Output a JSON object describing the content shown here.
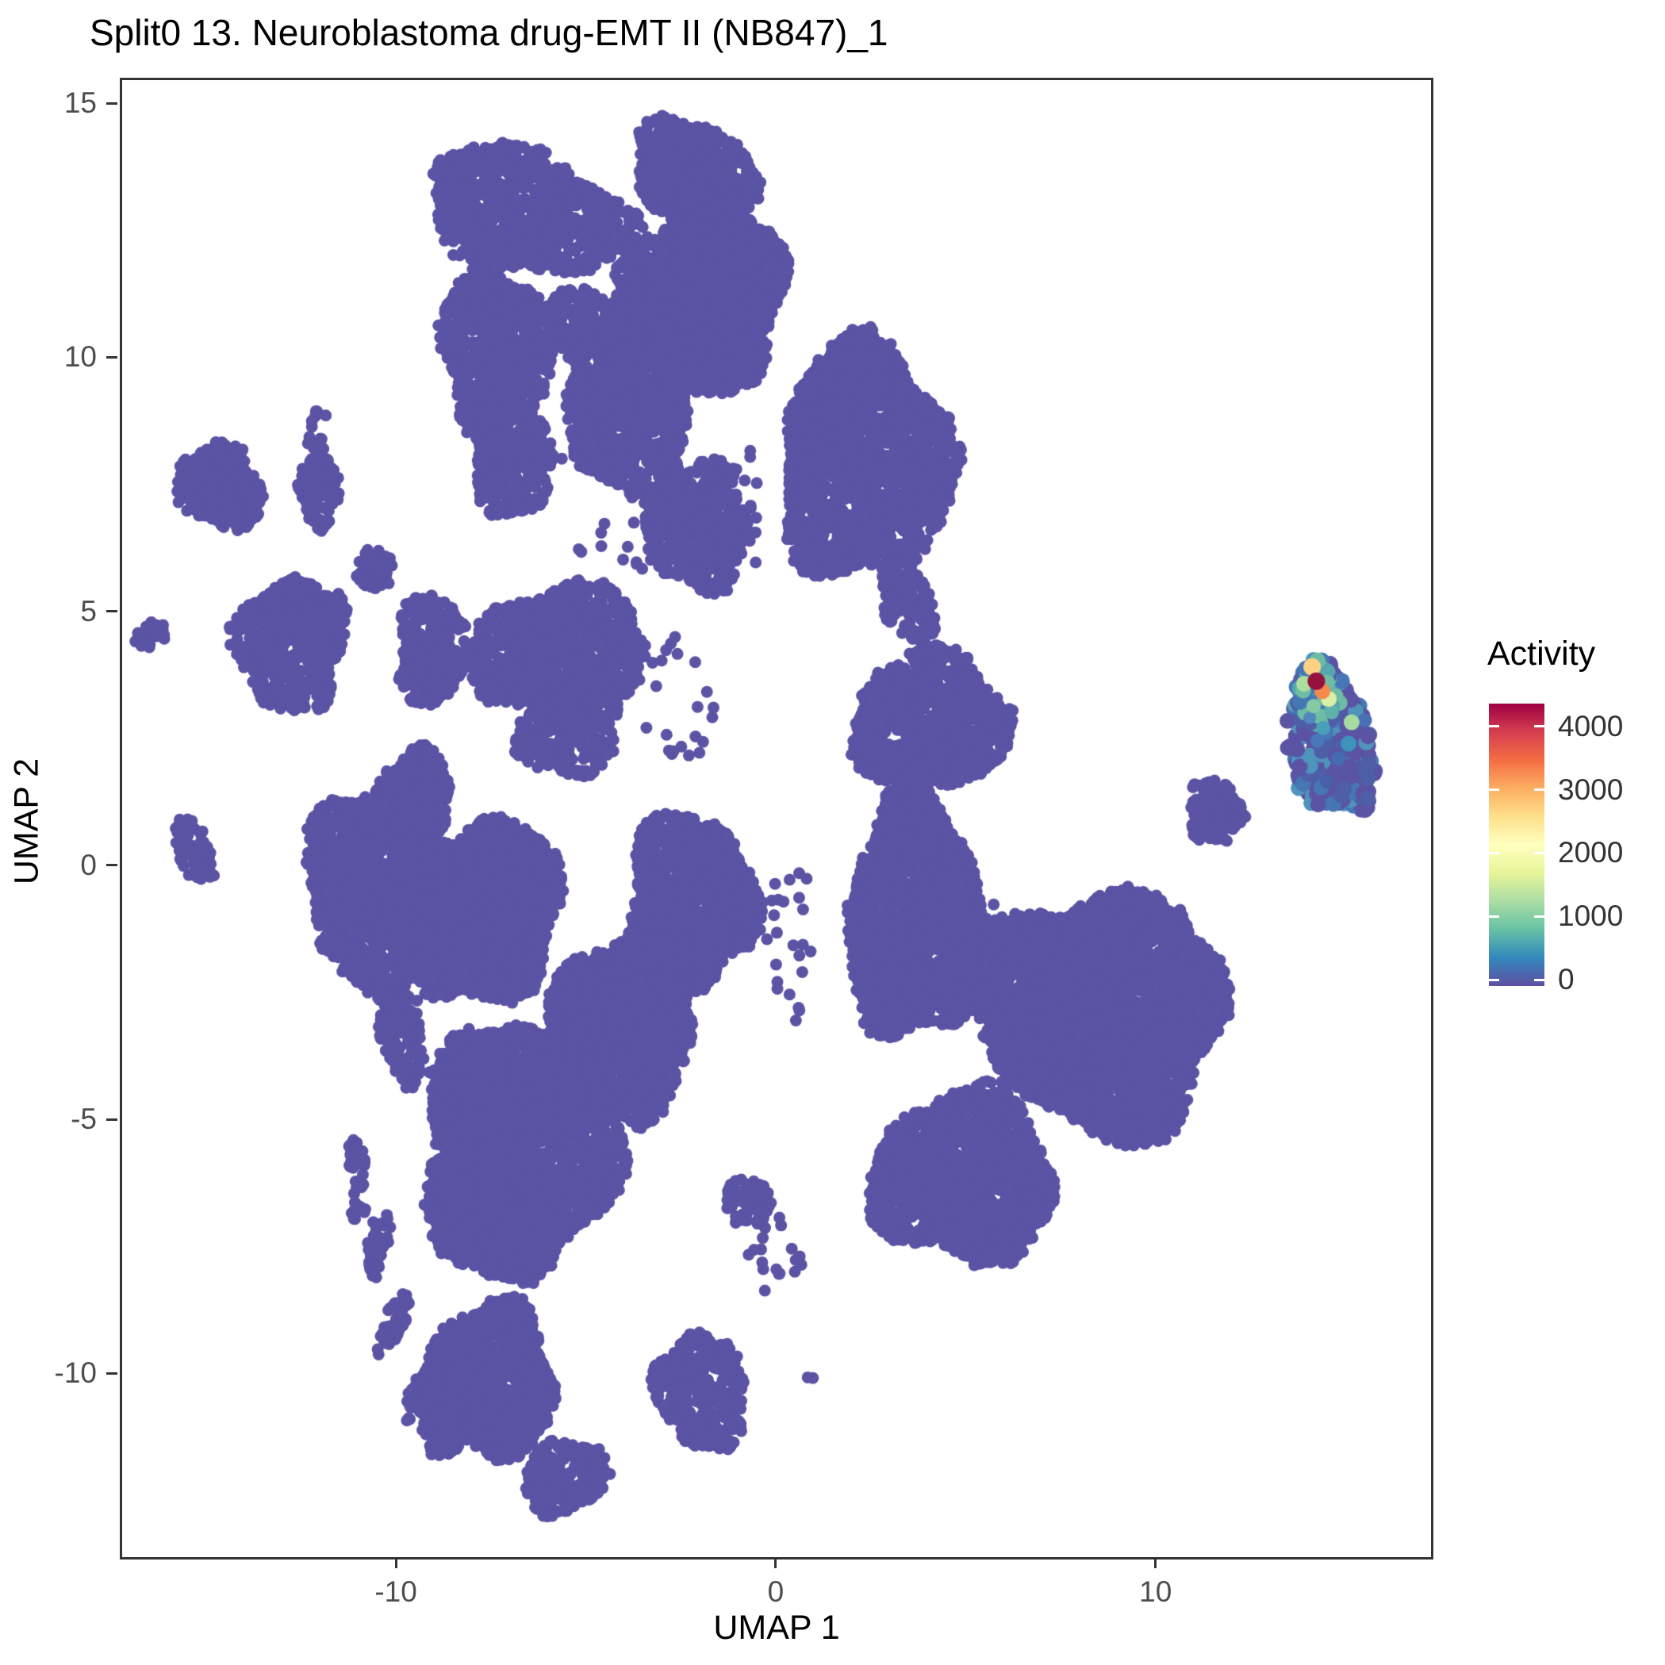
{
  "title": "Split0 13. Neuroblastoma drug-EMT II (NB847)_1",
  "axes": {
    "x": {
      "label": "UMAP 1",
      "ticks": [
        -10,
        0,
        10
      ],
      "range": [
        -17.27,
        17.19
      ]
    },
    "y": {
      "label": "UMAP 2",
      "ticks": [
        -10,
        -5,
        0,
        5,
        10,
        15
      ],
      "range": [
        -13.57,
        15.5
      ]
    }
  },
  "legend": {
    "title": "Activity",
    "tick_values": [
      4000,
      3000,
      2000,
      1000,
      0
    ],
    "value_range": {
      "min": -100,
      "max": 4360
    },
    "gradient_top_to_bottom": [
      "#9E0142",
      "#D53E4F",
      "#F46D43",
      "#FDAE61",
      "#FEE08B",
      "#FFFFBF",
      "#E6F598",
      "#ABDDA4",
      "#66C2A5",
      "#3288BD",
      "#5E4FA2"
    ]
  },
  "chart_data": {
    "type": "scatter",
    "title": "Split0 13. Neuroblastoma drug-EMT II (NB847)_1",
    "xlabel": "UMAP 1",
    "ylabel": "UMAP 2",
    "xlim": [
      -17.27,
      17.19
    ],
    "ylim": [
      -13.57,
      15.5
    ],
    "grid": false,
    "legend_position": "right",
    "point_color": "#5B53A4",
    "point_radius_px": 7.5,
    "clusters": [
      {
        "name": "topleft-cap",
        "cx": -6.6,
        "cy": 12.9,
        "rx": 2.7,
        "ry": 1.2,
        "rot": -10,
        "n": 1000
      },
      {
        "name": "topleft-main",
        "cx": -7.4,
        "cy": 10.2,
        "rx": 1.5,
        "ry": 1.6,
        "rot": 10,
        "n": 800
      },
      {
        "name": "topleft-arm",
        "cx": -7.0,
        "cy": 8.1,
        "rx": 1.0,
        "ry": 1.3,
        "rot": 5,
        "n": 380
      },
      {
        "name": "ring-top",
        "cx": -4.8,
        "cy": 10.5,
        "rx": 1.3,
        "ry": 0.85,
        "rot": -20,
        "n": 320
      },
      {
        "name": "ring-right-bridge",
        "cx": -3.9,
        "cy": 8.8,
        "rx": 1.6,
        "ry": 1.5,
        "rot": -30,
        "n": 750
      },
      {
        "name": "ring-hole-dots",
        "cx": -5.3,
        "cy": 8.3,
        "rx": 0.9,
        "ry": 0.7,
        "rot": 0,
        "n": 13,
        "sparse": true
      },
      {
        "name": "ring-hole-dots2",
        "cx": -4.5,
        "cy": 6.1,
        "rx": 1.2,
        "ry": 0.7,
        "rot": 0,
        "n": 12,
        "sparse": true
      },
      {
        "name": "dots-left-of-cap",
        "cx": -12.2,
        "cy": 8.55,
        "rx": 0.35,
        "ry": 0.6,
        "rot": 0,
        "n": 22,
        "sparse": true
      },
      {
        "name": "left-blob",
        "cx": -14.7,
        "cy": 7.5,
        "rx": 1.15,
        "ry": 0.8,
        "rot": -15,
        "n": 330
      },
      {
        "name": "small-blob-1",
        "cx": -12.1,
        "cy": 7.4,
        "rx": 0.55,
        "ry": 0.68,
        "rot": 0,
        "n": 120
      },
      {
        "name": "small-blob-2",
        "cx": -10.6,
        "cy": 5.9,
        "rx": 0.5,
        "ry": 0.45,
        "rot": 0,
        "n": 75
      },
      {
        "name": "far-left-dots",
        "cx": -16.5,
        "cy": 4.55,
        "rx": 0.42,
        "ry": 0.3,
        "rot": 20,
        "n": 26
      },
      {
        "name": "topright-toplobe",
        "cx": -2.2,
        "cy": 13.6,
        "rx": 1.6,
        "ry": 1.1,
        "rot": -15,
        "n": 650
      },
      {
        "name": "topright-main",
        "cx": -1.9,
        "cy": 11.2,
        "rx": 2.1,
        "ry": 1.8,
        "rot": 5,
        "n": 1800
      },
      {
        "name": "topright-rightlobe",
        "cx": 2.3,
        "cy": 8.0,
        "rx": 2.25,
        "ry": 2.35,
        "rot": -10,
        "n": 1800
      },
      {
        "name": "topright-triangle",
        "cx": -2.1,
        "cy": 6.7,
        "rx": 1.35,
        "ry": 1.25,
        "rot": 0,
        "n": 520
      },
      {
        "name": "neck-dots",
        "cx": -0.9,
        "cy": 7.0,
        "rx": 0.55,
        "ry": 1.3,
        "rot": 0,
        "n": 18,
        "sparse": true
      },
      {
        "name": "lone-dot-neck",
        "cx": -1.8,
        "cy": 9.9,
        "rx": 0.18,
        "ry": 0.18,
        "rot": 0,
        "n": 3
      },
      {
        "name": "comma-blob",
        "cx": 3.4,
        "cy": 5.3,
        "rx": 0.6,
        "ry": 1.0,
        "rot": 30,
        "n": 170
      },
      {
        "name": "diamond",
        "cx": -5.7,
        "cy": 4.2,
        "rx": 2.3,
        "ry": 1.35,
        "rot": 0,
        "n": 1000
      },
      {
        "name": "diamond-neck",
        "cx": -5.6,
        "cy": 2.6,
        "rx": 1.3,
        "ry": 0.8,
        "rot": 0,
        "n": 280
      },
      {
        "name": "center-upper",
        "cx": -7.7,
        "cy": -0.8,
        "rx": 2.0,
        "ry": 1.75,
        "rot": 0,
        "n": 1800
      },
      {
        "name": "center-right-mid",
        "cx": -2.3,
        "cy": -0.7,
        "rx": 1.65,
        "ry": 1.75,
        "rot": 0,
        "n": 1200
      },
      {
        "name": "center-bridge",
        "cx": -4.1,
        "cy": -3.1,
        "rx": 1.9,
        "ry": 1.8,
        "rot": 0,
        "n": 1400
      },
      {
        "name": "center-big",
        "cx": -6.9,
        "cy": -5.6,
        "rx": 2.5,
        "ry": 2.5,
        "rot": 0,
        "n": 2800
      },
      {
        "name": "center-lower",
        "cx": -7.6,
        "cy": -10.1,
        "rx": 1.75,
        "ry": 1.5,
        "rot": 0,
        "n": 1100
      },
      {
        "name": "center-bottom-tip",
        "cx": -5.6,
        "cy": -12.0,
        "rx": 1.15,
        "ry": 0.7,
        "rot": 10,
        "n": 300
      },
      {
        "name": "center-foot",
        "cx": -2.0,
        "cy": -10.3,
        "rx": 1.25,
        "ry": 1.1,
        "rot": -30,
        "n": 380
      },
      {
        "name": "center-bump-right",
        "cx": -0.8,
        "cy": -6.6,
        "rx": 0.6,
        "ry": 0.5,
        "rot": 0,
        "n": 90
      },
      {
        "name": "excl-dash",
        "cx": -11.1,
        "cy": -5.85,
        "rx": 0.22,
        "ry": 0.55,
        "rot": 5,
        "n": 45
      },
      {
        "name": "excl-dot",
        "cx": -11.05,
        "cy": -6.75,
        "rx": 0.18,
        "ry": 0.2,
        "rot": 0,
        "n": 12
      },
      {
        "name": "tail-arc-1",
        "cx": -10.55,
        "cy": -7.4,
        "rx": 0.26,
        "ry": 0.7,
        "rot": -18,
        "n": 50
      },
      {
        "name": "tail-arc-2",
        "cx": -10.1,
        "cy": -8.9,
        "rx": 0.26,
        "ry": 0.75,
        "rot": -28,
        "n": 50
      },
      {
        "name": "tail-arc-3",
        "cx": -9.35,
        "cy": -10.3,
        "rx": 0.3,
        "ry": 0.65,
        "rot": -42,
        "n": 55
      },
      {
        "name": "tail-end",
        "cx": -8.8,
        "cy": -11.1,
        "rx": 0.55,
        "ry": 0.5,
        "rot": 0,
        "n": 110
      },
      {
        "name": "lone-dot-bottom",
        "cx": 0.85,
        "cy": -9.95,
        "rx": 0.15,
        "ry": 0.15,
        "rot": 0,
        "n": 2
      },
      {
        "name": "channel-dots",
        "cx": 0.3,
        "cy": -1.5,
        "rx": 0.6,
        "ry": 1.5,
        "rot": 0,
        "n": 24,
        "sparse": true
      },
      {
        "name": "dots-below-triangle",
        "cx": -2.6,
        "cy": 3.3,
        "rx": 0.9,
        "ry": 1.4,
        "rot": 0,
        "n": 22,
        "sparse": true
      },
      {
        "name": "dots-southeast",
        "cx": -0.1,
        "cy": -7.6,
        "rx": 0.7,
        "ry": 0.8,
        "rot": 0,
        "n": 18,
        "sparse": true
      },
      {
        "name": "midleft-pentagon",
        "cx": -12.8,
        "cy": 4.4,
        "rx": 1.5,
        "ry": 1.3,
        "rot": 10,
        "n": 540
      },
      {
        "name": "midleft-small",
        "cx": -9.1,
        "cy": 4.3,
        "rx": 0.95,
        "ry": 1.1,
        "rot": 0,
        "n": 300
      },
      {
        "name": "midleft-dash",
        "cx": -7.4,
        "cy": 3.55,
        "rx": 0.5,
        "ry": 0.28,
        "rot": 25,
        "n": 45
      },
      {
        "name": "midleft-diag-dash",
        "cx": -15.4,
        "cy": 0.4,
        "rx": 0.42,
        "ry": 0.8,
        "rot": 28,
        "n": 60
      },
      {
        "name": "midleft-main",
        "cx": -10.6,
        "cy": -0.3,
        "rx": 1.75,
        "ry": 2.05,
        "rot": -8,
        "n": 1350
      },
      {
        "name": "midleft-top-spur",
        "cx": -9.5,
        "cy": 1.5,
        "rx": 0.9,
        "ry": 0.85,
        "rot": 0,
        "n": 280
      },
      {
        "name": "midleft-right-spur",
        "cx": -8.8,
        "cy": -1.7,
        "rx": 0.95,
        "ry": 0.85,
        "rot": 0,
        "n": 260
      },
      {
        "name": "midleft-tail",
        "cx": -9.9,
        "cy": -3.3,
        "rx": 0.55,
        "ry": 1.0,
        "rot": 12,
        "n": 150
      },
      {
        "name": "right-diamond",
        "cx": 4.0,
        "cy": 2.9,
        "rx": 2.05,
        "ry": 1.35,
        "rot": 0,
        "n": 1000
      },
      {
        "name": "right-main-left",
        "cx": 3.6,
        "cy": -1.0,
        "rx": 1.75,
        "ry": 2.45,
        "rot": 0,
        "n": 1800
      },
      {
        "name": "right-big-lobe",
        "cx": 8.5,
        "cy": -2.8,
        "rx": 3.3,
        "ry": 2.35,
        "rot": -5,
        "n": 3600
      },
      {
        "name": "right-bottom",
        "cx": 4.9,
        "cy": -6.1,
        "rx": 2.4,
        "ry": 1.7,
        "rot": 0,
        "n": 1400
      },
      {
        "name": "right-top-bump",
        "cx": 11.5,
        "cy": 1.1,
        "rx": 0.7,
        "ry": 0.65,
        "rot": 0,
        "n": 150
      },
      {
        "name": "right-hole-dots",
        "cx": 5.3,
        "cy": -1.1,
        "rx": 0.7,
        "ry": 0.55,
        "rot": 0,
        "n": 14,
        "sparse": true
      },
      {
        "name": "active-cluster-body",
        "cx": 14.55,
        "cy": 2.45,
        "rx": 1.08,
        "ry": 1.5,
        "rot": 25,
        "n": 300,
        "pr": 10,
        "palette": [
          [
            "#5B53A4",
            0.55
          ],
          [
            "#4E5FA8",
            0.2
          ],
          [
            "#4577B5",
            0.13
          ],
          [
            "#4E94BB",
            0.12
          ]
        ]
      },
      {
        "name": "active-cluster-top",
        "cx": 14.15,
        "cy": 3.4,
        "rx": 0.6,
        "ry": 0.65,
        "rot": 0,
        "n": 80,
        "pr": 10,
        "palette": [
          [
            "#4E5FA8",
            0.3
          ],
          [
            "#4577B5",
            0.3
          ],
          [
            "#55A7B0",
            0.2
          ],
          [
            "#6FBCA4",
            0.2
          ]
        ]
      }
    ],
    "highlight_points": [
      {
        "x": 15.45,
        "y": 2.9,
        "color": "#4A6FB5",
        "r": 9
      },
      {
        "x": 14.75,
        "y": 2.15,
        "color": "#456BB0",
        "r": 9
      },
      {
        "x": 14.2,
        "y": 2.5,
        "color": "#4878B8",
        "r": 9
      },
      {
        "x": 14.0,
        "y": 2.95,
        "color": "#5287BD",
        "r": 8
      },
      {
        "x": 14.45,
        "y": 1.7,
        "color": "#4A5FA9",
        "r": 9
      },
      {
        "x": 15.02,
        "y": 2.44,
        "color": "#3E93BC",
        "r": 10
      },
      {
        "x": 14.35,
        "y": 2.75,
        "color": "#49A0B8",
        "r": 9
      },
      {
        "x": 14.58,
        "y": 3.06,
        "color": "#5FB2AB",
        "r": 9
      },
      {
        "x": 14.1,
        "y": 3.18,
        "color": "#86C9A5",
        "r": 9
      },
      {
        "x": 15.1,
        "y": 2.86,
        "color": "#A6DCA1",
        "r": 10
      },
      {
        "x": 13.85,
        "y": 3.62,
        "color": "#AEDE9E",
        "r": 10
      },
      {
        "x": 14.5,
        "y": 3.32,
        "color": "#D8EFA4",
        "r": 10
      },
      {
        "x": 14.06,
        "y": 3.95,
        "color": "#FBD284",
        "r": 11
      },
      {
        "x": 14.33,
        "y": 3.47,
        "color": "#F6894E",
        "r": 10
      },
      {
        "x": 14.17,
        "y": 3.67,
        "color": "#96113F",
        "r": 11
      }
    ]
  }
}
